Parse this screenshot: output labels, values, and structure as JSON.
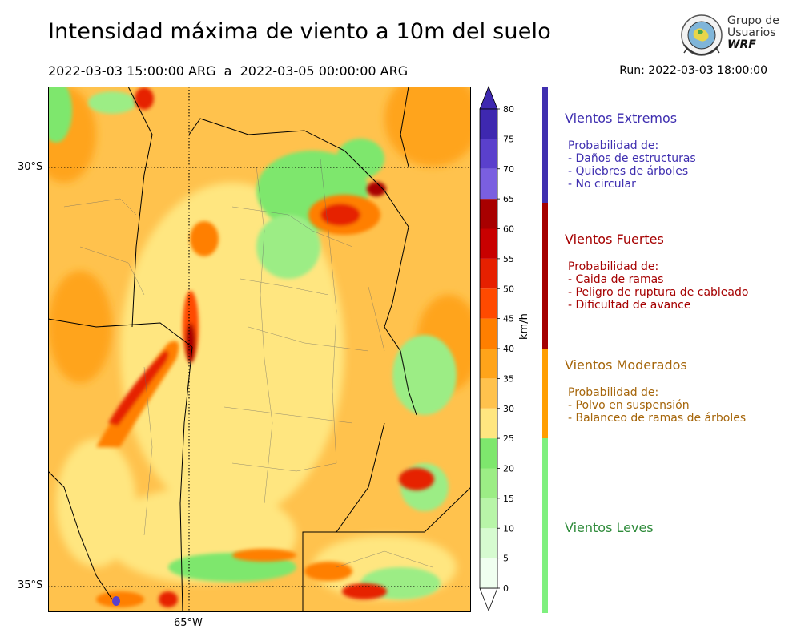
{
  "header": {
    "title": "Intensidad máxima de viento a 10m del suelo",
    "period": "2022-03-03 15:00:00 ARG  a  2022-03-05 00:00:00 ARG",
    "run": "Run: 2022-03-03 18:00:00"
  },
  "logo": {
    "line1": "Grupo de",
    "line2": "Usuarios",
    "line3": "WRF",
    "icon": "globe-emblem-icon"
  },
  "map": {
    "lat_labels": [
      "30°S",
      "35°S"
    ],
    "lon_labels": [
      "65°W"
    ],
    "gridlines": "dotted"
  },
  "colorbar": {
    "unit": "km/h",
    "ticks": [
      0,
      5,
      10,
      15,
      20,
      25,
      30,
      35,
      40,
      45,
      50,
      55,
      60,
      65,
      70,
      75,
      80
    ],
    "colors": [
      "#f0fff0",
      "#d6fbd0",
      "#b8f5a8",
      "#9ced85",
      "#7ee76d",
      "#ffe680",
      "#ffc24d",
      "#ffa41a",
      "#ff7f00",
      "#ff4a00",
      "#e62000",
      "#c80000",
      "#a80000",
      "#7a5fe0",
      "#5a40cc",
      "#3e28b0"
    ],
    "extend": "both"
  },
  "categories": [
    {
      "title": "Vientos Extremos",
      "color": "#3f2fb0",
      "subtitle": "Probabilidad de:",
      "items": [
        "- Daños de estructuras",
        "- Quiebres de árboles",
        "- No circular"
      ]
    },
    {
      "title": "Vientos Fuertes",
      "color": "#a50000",
      "subtitle": "Probabilidad de:",
      "items": [
        "- Caida de ramas",
        "- Peligro de ruptura de cableado",
        "- Dificultad de avance"
      ]
    },
    {
      "title": "Vientos Moderados",
      "color": "#a5650a",
      "strip_color": "#ff9e00",
      "subtitle": "Probabilidad de:",
      "items": [
        "- Polvo en suspensión",
        "- Balanceo de ramas de árboles"
      ]
    },
    {
      "title": "Vientos Leves",
      "color": "#2e8b3a",
      "strip_color": "#7ef07e"
    }
  ]
}
